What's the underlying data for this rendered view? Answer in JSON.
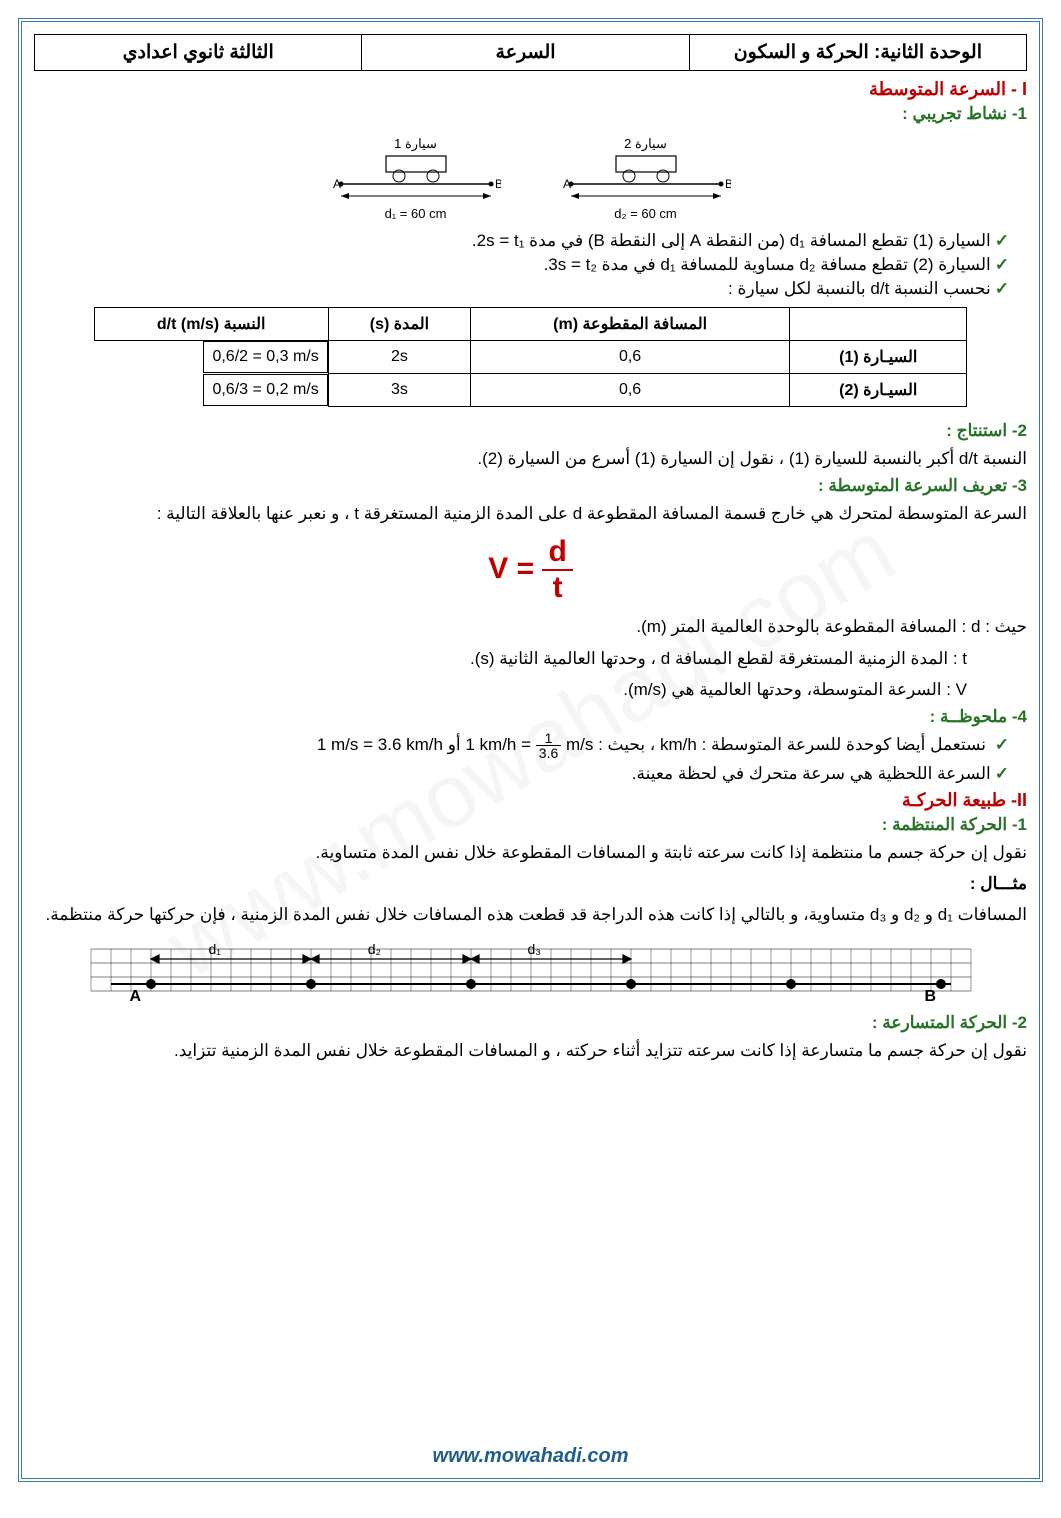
{
  "header": {
    "unit": "الوحدة الثانية: الحركة و السكون",
    "topic": "السرعة",
    "grade": "الثالثة  ثانوي اعدادي"
  },
  "section1": {
    "title": "I - السرعة المتوسطة",
    "sub1": "1- نشاط تجريبي :",
    "car1_label": "سيارة 1",
    "car2_label": "سيارة 2",
    "d1_label": "d₁ = 60 cm",
    "d2_label": "d₂ = 60 cm",
    "bullet1": "السيارة (1) تقطع المسافة  d₁  (من النقطة A إلى النقطة B) في مدة  2s = t₁.",
    "bullet2": "السيارة (2) تقطع مسافة  d₂  مساوية للمسافة d₁ في مدة  3s = t₂.",
    "bullet3": "نحسب النسبة  d/t  بالنسبة لكل سيارة :",
    "table": {
      "headers": [
        "",
        "المسافة المقطوعة (m)",
        "المدة (s)",
        "النسبة     d/t (m/s)"
      ],
      "rows": [
        [
          "السيـارة (1)",
          "0,6",
          "2s",
          "0,6/2 = 0,3 m/s"
        ],
        [
          "السيـارة (2)",
          "0,6",
          "3s",
          "0,6/3 = 0,2 m/s"
        ]
      ]
    },
    "sub2": "2- استنتاج :",
    "conclusion": "النسبة  d/t  أكبر بالنسبة للسيارة (1) ، نقول إن السيارة (1) أسرع من السيارة (2).",
    "sub3": "3- تعريف السرعة المتوسطة :",
    "definition": "السرعة المتوسطة لمتحرك هي خارج قسمة المسافة المقطوعة d على المدة الزمنية المستغرقة t ، و نعبر عنها بالعلاقة التالية :",
    "formula_v": "V",
    "formula_d": "d",
    "formula_t": "t",
    "where_intro": "حيث :   d : المسافة المقطوعة بالوحدة العالمية المتر (m).",
    "where_t": "t : المدة الزمنية المستغرقة لقطع المسافة d ، وحدتها العالمية الثانية (s).",
    "where_v": "V : السرعة المتوسطة، وحدتها العالمية هي (m/s).",
    "sub4": "4- ملحوظــة :",
    "note1_pre": "نستعمل أيضا كوحدة للسرعة المتوسطة : km/h ، بحيث :   ",
    "note1_eq1a": "1 km/h =",
    "note1_eq1_num": "1",
    "note1_eq1_den": "3.6",
    "note1_eq1b": "m/s",
    "note1_or": "   أو   ",
    "note1_eq2": "1 m/s = 3.6 km/h",
    "note2": "السرعة اللحظية هي سرعة متحرك في لحظة معينة."
  },
  "section2": {
    "title": "II- طبيعة الحركـة",
    "sub1": "1- الحركة المنتظمة :",
    "text1": "نقول إن حركة جسم ما منتظمة إذا كانت سرعته ثابتة و المسافات المقطوعة خلال نفس المدة متساوية.",
    "example_label": "مثـــال :",
    "example_text": "المسافات d₁ و d₂ و d₃ متساوية، و بالتالي إذا كانت هذه الدراجة قد قطعت هذه المسافات خلال نفس المدة الزمنية ، فإن حركتها حركة منتظمة.",
    "diagram_labels": [
      "d₁",
      "d₂",
      "d₃",
      "A",
      "B"
    ],
    "sub2": "2- الحركة المتسارعة :",
    "text2": "نقول إن حركة جسم ما متسارعة إذا كانت سرعته تتزايد أثناء حركته ، و المسافات المقطوعة خلال نفس المدة الزمنية تتزايد."
  },
  "footer": "www.mowahadi.com",
  "watermark": "www.mowahadi.com",
  "colors": {
    "frame": "#3b7a9e",
    "red": "#c00000",
    "green": "#267326",
    "footer": "#1f5f8b"
  }
}
